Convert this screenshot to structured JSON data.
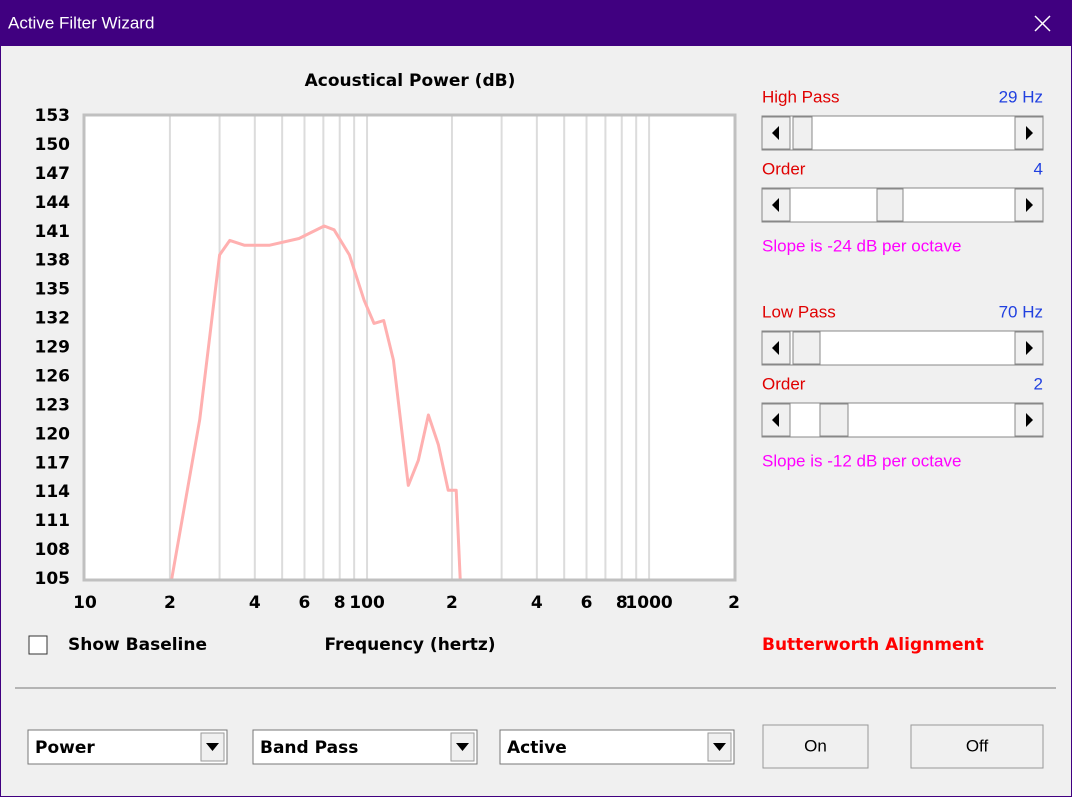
{
  "window": {
    "title": "Active Filter Wizard"
  },
  "chart_data": {
    "type": "line",
    "title": "Acoustical Power (dB)",
    "x_label": "Frequency (hertz)",
    "x": [
      20.3,
      25.5,
      30,
      32.6,
      36.8,
      45,
      57.4,
      70.5,
      76.4,
      86.6,
      97.6,
      105.8,
      114.6,
      124,
      140,
      152,
      165,
      179,
      194,
      207,
      214
    ],
    "values": [
      105,
      121.5,
      138.6,
      140.1,
      139.6,
      139.6,
      140.3,
      141.6,
      141.2,
      138.6,
      133.9,
      131.5,
      131.8,
      127.7,
      114.7,
      117.3,
      122,
      118.9,
      114.2,
      114.2,
      105
    ],
    "color": "#ffb0b0",
    "x_log": true,
    "grid": true,
    "xlim": [
      10,
      2000
    ],
    "ylim": [
      105,
      153
    ],
    "xticks": [
      10,
      {
        "value": 20,
        "label": "2"
      },
      {
        "value": 40,
        "label": "4"
      },
      {
        "value": 60,
        "label": "6"
      },
      {
        "value": 80,
        "label": "8"
      },
      100,
      {
        "value": 200,
        "label": "2"
      },
      {
        "value": 400,
        "label": "4"
      },
      {
        "value": 600,
        "label": "6"
      },
      {
        "value": 800,
        "label": "8"
      },
      1000,
      {
        "value": 2000,
        "label": "2"
      }
    ],
    "x_minor_grid": [
      30,
      50,
      70,
      90,
      300,
      500,
      700,
      900
    ],
    "yticks": [
      105,
      108,
      111,
      114,
      117,
      120,
      123,
      126,
      129,
      132,
      135,
      138,
      141,
      144,
      147,
      150,
      153
    ]
  },
  "controls": {
    "show_baseline": "Show Baseline",
    "high_pass": {
      "label": "High Pass",
      "value": "29 Hz"
    },
    "high_order": {
      "label": "Order",
      "value": "4"
    },
    "high_slope": "Slope is -24 dB per octave",
    "low_pass": {
      "label": "Low Pass",
      "value": "70 Hz"
    },
    "low_order": {
      "label": "Order",
      "value": "2"
    },
    "low_slope": "Slope is -12 dB per octave",
    "alignment": "Butterworth Alignment",
    "dropdowns": [
      "Power",
      "Band Pass",
      "Active"
    ],
    "buttons": [
      "On",
      "Off"
    ]
  }
}
